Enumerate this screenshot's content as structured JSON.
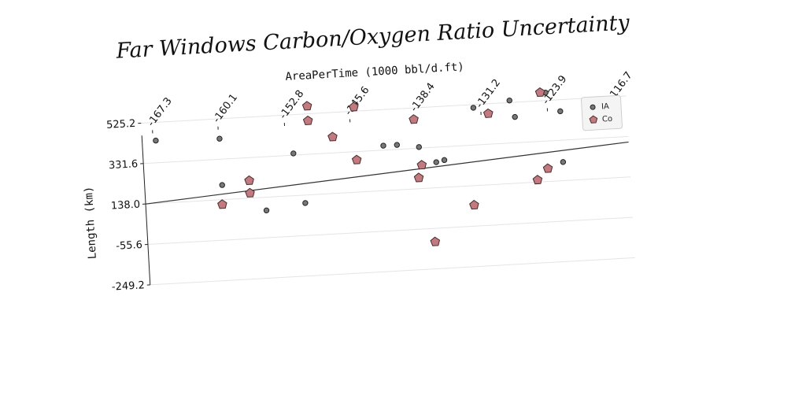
{
  "chart_data": {
    "type": "scatter",
    "title": "Far Windows Carbon/Oxygen Ratio Uncertainty",
    "xlabel": "AreaPerTime (1000 bbl/d.ft)",
    "ylabel": "Length (km)",
    "x_ticks": [
      "-167.3",
      "-160.1",
      "-152.8",
      "-145.6",
      "-138.4",
      "-131.2",
      "-123.9",
      "-116.7"
    ],
    "y_ticks": [
      "525.2",
      "331.6",
      "138.0",
      "-55.6",
      "-249.2"
    ],
    "x_tick_values": [
      -167.3,
      -160.1,
      -152.8,
      -145.6,
      -138.4,
      -131.2,
      -123.9,
      -116.7
    ],
    "y_tick_values": [
      525.2,
      331.6,
      138.0,
      -55.6,
      -249.2
    ],
    "xlim": [
      -168.5,
      -115.2
    ],
    "ylim": [
      -249.2,
      560
    ],
    "grid": true,
    "legend_position": "top-right",
    "series": [
      {
        "name": "IA",
        "marker": "circle",
        "color": "#777777",
        "points": [
          [
            -167.0,
            438
          ],
          [
            -160.0,
            430
          ],
          [
            -160.0,
            208
          ],
          [
            -155.3,
            75
          ],
          [
            -152.0,
            340
          ],
          [
            -151.0,
            100
          ],
          [
            -145.1,
            295
          ],
          [
            -142.1,
            353
          ],
          [
            -140.6,
            353
          ],
          [
            -138.2,
            337
          ],
          [
            -136.4,
            260
          ],
          [
            -135.5,
            268
          ],
          [
            -132.0,
            510
          ],
          [
            -128.0,
            535
          ],
          [
            -127.5,
            455
          ],
          [
            -124.0,
            563
          ],
          [
            -122.5,
            470
          ],
          [
            -122.5,
            227
          ],
          [
            -117.6,
            452
          ]
        ]
      },
      {
        "name": "Co",
        "marker": "pentagon",
        "color": "#c07a80",
        "points": [
          [
            -160.1,
            115
          ],
          [
            -157.0,
            222
          ],
          [
            -157.0,
            162
          ],
          [
            -150.2,
            562
          ],
          [
            -150.2,
            492
          ],
          [
            -147.6,
            408
          ],
          [
            -145.1,
            292
          ],
          [
            -145.1,
            545
          ],
          [
            -138.6,
            470
          ],
          [
            -138.4,
            190
          ],
          [
            -138.0,
            250
          ],
          [
            -137.0,
            -120
          ],
          [
            -132.5,
            45
          ],
          [
            -130.4,
            478
          ],
          [
            -125.4,
            148
          ],
          [
            -124.6,
            565
          ],
          [
            -124.2,
            200
          ]
        ]
      },
      {
        "name": "",
        "type": "line",
        "points": [
          [
            -168.5,
            138
          ],
          [
            -115.2,
            305
          ]
        ]
      }
    ]
  }
}
